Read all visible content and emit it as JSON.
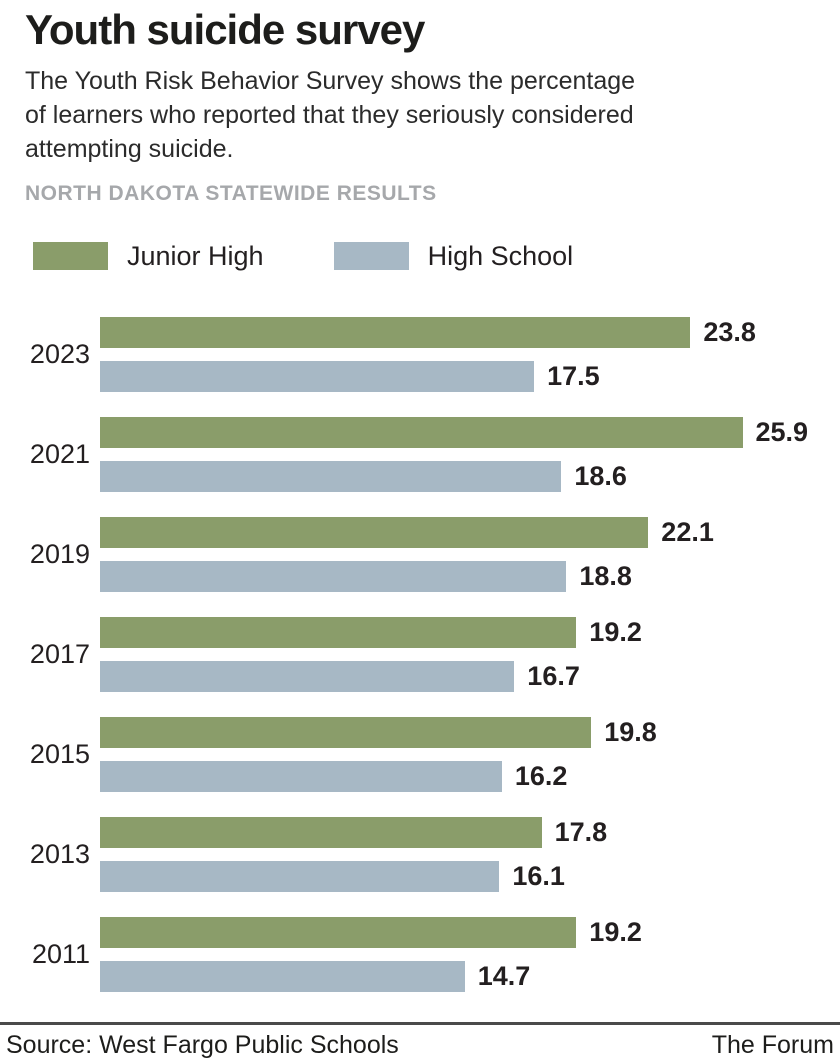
{
  "header": {
    "title": "Youth suicide survey",
    "subtitle_lines": [
      "The Youth Risk Behavior Survey shows the percentage",
      "of learners who reported that they seriously considered",
      "attempting suicide."
    ],
    "kicker": "NORTH DAKOTA STATEWIDE RESULTS"
  },
  "legend": [
    {
      "label": "Junior High",
      "color": "#8a9d6a"
    },
    {
      "label": "High School",
      "color": "#a7b8c5"
    }
  ],
  "chart_data": {
    "type": "bar",
    "orientation": "horizontal",
    "title": "Youth suicide survey",
    "subtitle": "The Youth Risk Behavior Survey shows the percentage of learners who reported that they seriously considered attempting suicide.",
    "region_note": "NORTH DAKOTA STATEWIDE RESULTS",
    "categories": [
      "2023",
      "2021",
      "2019",
      "2017",
      "2015",
      "2013",
      "2011"
    ],
    "series": [
      {
        "name": "Junior High",
        "color": "#8a9d6a",
        "values": [
          23.8,
          25.9,
          22.1,
          19.2,
          19.8,
          17.8,
          19.2
        ]
      },
      {
        "name": "High School",
        "color": "#a7b8c5",
        "values": [
          17.5,
          18.6,
          18.8,
          16.7,
          16.2,
          16.1,
          14.7
        ]
      }
    ],
    "xlim": [
      0,
      26
    ],
    "value_labels": true,
    "grid": false,
    "legend_position": "top",
    "unit": "percent"
  },
  "footer": {
    "source": "Source: West Fargo Public Schools",
    "credit": "The Forum"
  },
  "colors": {
    "junior_high": "#8a9d6a",
    "high_school": "#a7b8c5",
    "kicker_gray": "#a6a8ab",
    "text": "#231f20",
    "divider": "#4a4a4a"
  }
}
